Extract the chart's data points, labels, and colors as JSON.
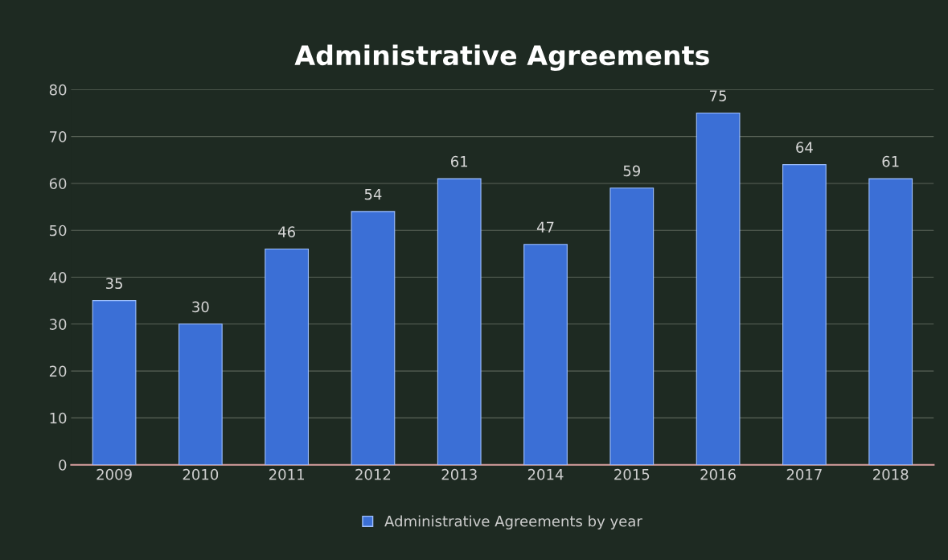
{
  "chart_data": {
    "type": "bar",
    "title": "Administrative Agreements",
    "categories": [
      "2009",
      "2010",
      "2011",
      "2012",
      "2013",
      "2014",
      "2015",
      "2016",
      "2017",
      "2018"
    ],
    "series": [
      {
        "name": "Administrative Agreements by year",
        "color": "#3b6fd6",
        "values": [
          35,
          30,
          46,
          54,
          61,
          47,
          59,
          75,
          64,
          61
        ]
      }
    ],
    "ylim": [
      0,
      80
    ],
    "yticks": [
      0,
      10,
      20,
      30,
      40,
      50,
      60,
      70,
      80
    ],
    "grid": "y",
    "legend": "bottom",
    "data_labels": true
  }
}
